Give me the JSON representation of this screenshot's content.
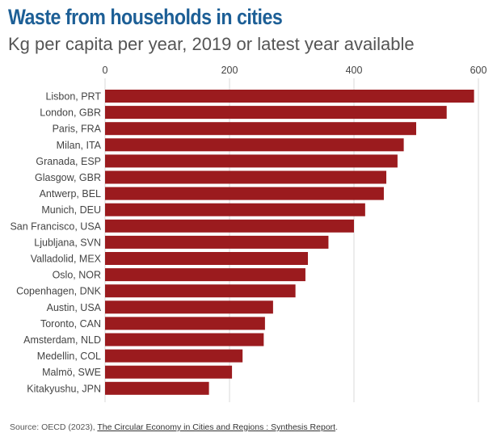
{
  "header": {
    "title": "Waste from households in cities",
    "subtitle": "Kg per capita per year, 2019 or latest year available"
  },
  "footer": {
    "source_prefix": "Source: OECD (2023), ",
    "source_link": "The Circular Economy in Cities and Regions : Synthesis Report",
    "source_suffix": "."
  },
  "colors": {
    "bar": "#9b1b1e",
    "grid": "#d9d9d9",
    "text": "#444444"
  },
  "chart_data": {
    "type": "bar",
    "orientation": "horizontal",
    "title": "Waste from households in cities",
    "subtitle": "Kg per capita per year, 2019 or latest year available",
    "xlabel": "",
    "ylabel": "",
    "xlim": [
      0,
      600
    ],
    "ticks": [
      0,
      200,
      400,
      600
    ],
    "grid": true,
    "categories": [
      "Lisbon, PRT",
      "London, GBR",
      "Paris, FRA",
      "Milan, ITA",
      "Granada, ESP",
      "Glasgow, GBR",
      "Antwerp, BEL",
      "Munich, DEU",
      "San Francisco, USA",
      "Ljubljana, SVN",
      "Valladolid, MEX",
      "Oslo, NOR",
      "Copenhagen, DNK",
      "Austin, USA",
      "Toronto, CAN",
      "Amsterdam, NLD",
      "Medellin, COL",
      "Malmö, SWE",
      "Kitakyushu, JPN"
    ],
    "values": [
      593,
      549,
      500,
      480,
      470,
      452,
      448,
      418,
      400,
      359,
      326,
      322,
      306,
      270,
      257,
      255,
      221,
      204,
      167
    ]
  }
}
